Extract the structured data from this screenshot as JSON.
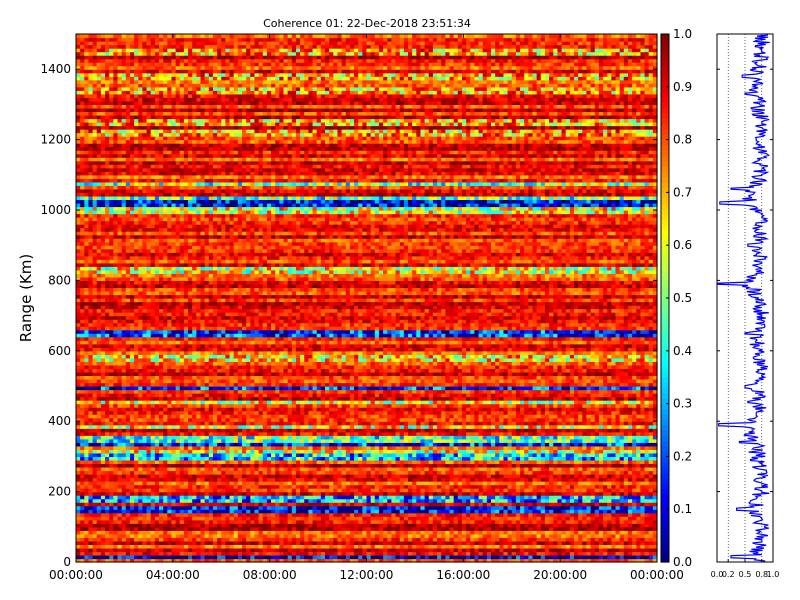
{
  "chart_data": [
    {
      "type": "heatmap",
      "title": "Coherence 01: 22-Dec-2018 23:51:34",
      "ylabel": "Range (Km)",
      "xlabel": "",
      "x_ticks": [
        "00:00:00",
        "04:00:00",
        "08:00:00",
        "12:00:00",
        "16:00:00",
        "20:00:00",
        "00:00:00"
      ],
      "x_range_hours": [
        0,
        24
      ],
      "y_ticks": [
        0,
        200,
        400,
        600,
        800,
        1000,
        1200,
        1400
      ],
      "ylim": [
        0,
        1500
      ],
      "colormap": "jet",
      "colorbar": {
        "range": [
          0.0,
          1.0
        ],
        "ticks": [
          "0.0",
          "0.1",
          "0.2",
          "0.3",
          "0.4",
          "0.5",
          "0.6",
          "0.7",
          "0.8",
          "0.9",
          "1.0"
        ]
      },
      "low_coherence_bands_km": [
        {
          "range": 15,
          "value": 0.05
        },
        {
          "range": 150,
          "value": 0.1
        },
        {
          "range": 180,
          "value": 0.3
        },
        {
          "range": 300,
          "value": 0.35
        },
        {
          "range": 315,
          "value": 0.6
        },
        {
          "range": 340,
          "value": 0.15
        },
        {
          "range": 350,
          "value": 0.45
        },
        {
          "range": 385,
          "value": 0.6
        },
        {
          "range": 455,
          "value": 0.6
        },
        {
          "range": 498,
          "value": 0.15
        },
        {
          "range": 580,
          "value": 0.65
        },
        {
          "range": 650,
          "value": 0.15
        },
        {
          "range": 830,
          "value": 0.6
        },
        {
          "range": 1000,
          "value": 0.6
        },
        {
          "range": 1020,
          "value": 0.1
        },
        {
          "range": 1035,
          "value": 0.45
        },
        {
          "range": 1075,
          "value": 0.5
        },
        {
          "range": 1220,
          "value": 0.7
        },
        {
          "range": 1250,
          "value": 0.7
        },
        {
          "range": 1340,
          "value": 0.7
        },
        {
          "range": 1380,
          "value": 0.7
        },
        {
          "range": 1450,
          "value": 0.7
        }
      ],
      "background_value_range": [
        0.75,
        0.95
      ]
    },
    {
      "type": "line",
      "title": "",
      "xlabel": "",
      "ylabel": "",
      "xlim": [
        0.0,
        1.0
      ],
      "x_ticks": [
        "0.0",
        "0.2",
        "0.5",
        "0.8",
        "1.0"
      ],
      "ylim": [
        0,
        1500
      ],
      "grid": "vertical dotted",
      "profile": [
        {
          "range": 0,
          "value": 0.85
        },
        {
          "range": 15,
          "value": 0.25
        },
        {
          "range": 60,
          "value": 0.8
        },
        {
          "range": 100,
          "value": 0.85
        },
        {
          "range": 150,
          "value": 0.35
        },
        {
          "range": 200,
          "value": 0.8
        },
        {
          "range": 290,
          "value": 0.6
        },
        {
          "range": 340,
          "value": 0.4
        },
        {
          "range": 390,
          "value": 0.03
        },
        {
          "range": 420,
          "value": 0.7
        },
        {
          "range": 455,
          "value": 0.55
        },
        {
          "range": 498,
          "value": 0.5
        },
        {
          "range": 530,
          "value": 0.8
        },
        {
          "range": 580,
          "value": 0.65
        },
        {
          "range": 650,
          "value": 0.5
        },
        {
          "range": 700,
          "value": 0.8
        },
        {
          "range": 740,
          "value": 0.7
        },
        {
          "range": 790,
          "value": 0.01
        },
        {
          "range": 850,
          "value": 0.8
        },
        {
          "range": 900,
          "value": 0.55
        },
        {
          "range": 980,
          "value": 0.8
        },
        {
          "range": 1020,
          "value": 0.05
        },
        {
          "range": 1060,
          "value": 0.25
        },
        {
          "range": 1100,
          "value": 0.8
        },
        {
          "range": 1200,
          "value": 0.7
        },
        {
          "range": 1250,
          "value": 0.8
        },
        {
          "range": 1330,
          "value": 0.5
        },
        {
          "range": 1380,
          "value": 0.45
        },
        {
          "range": 1450,
          "value": 0.8
        },
        {
          "range": 1500,
          "value": 0.9
        }
      ]
    }
  ]
}
